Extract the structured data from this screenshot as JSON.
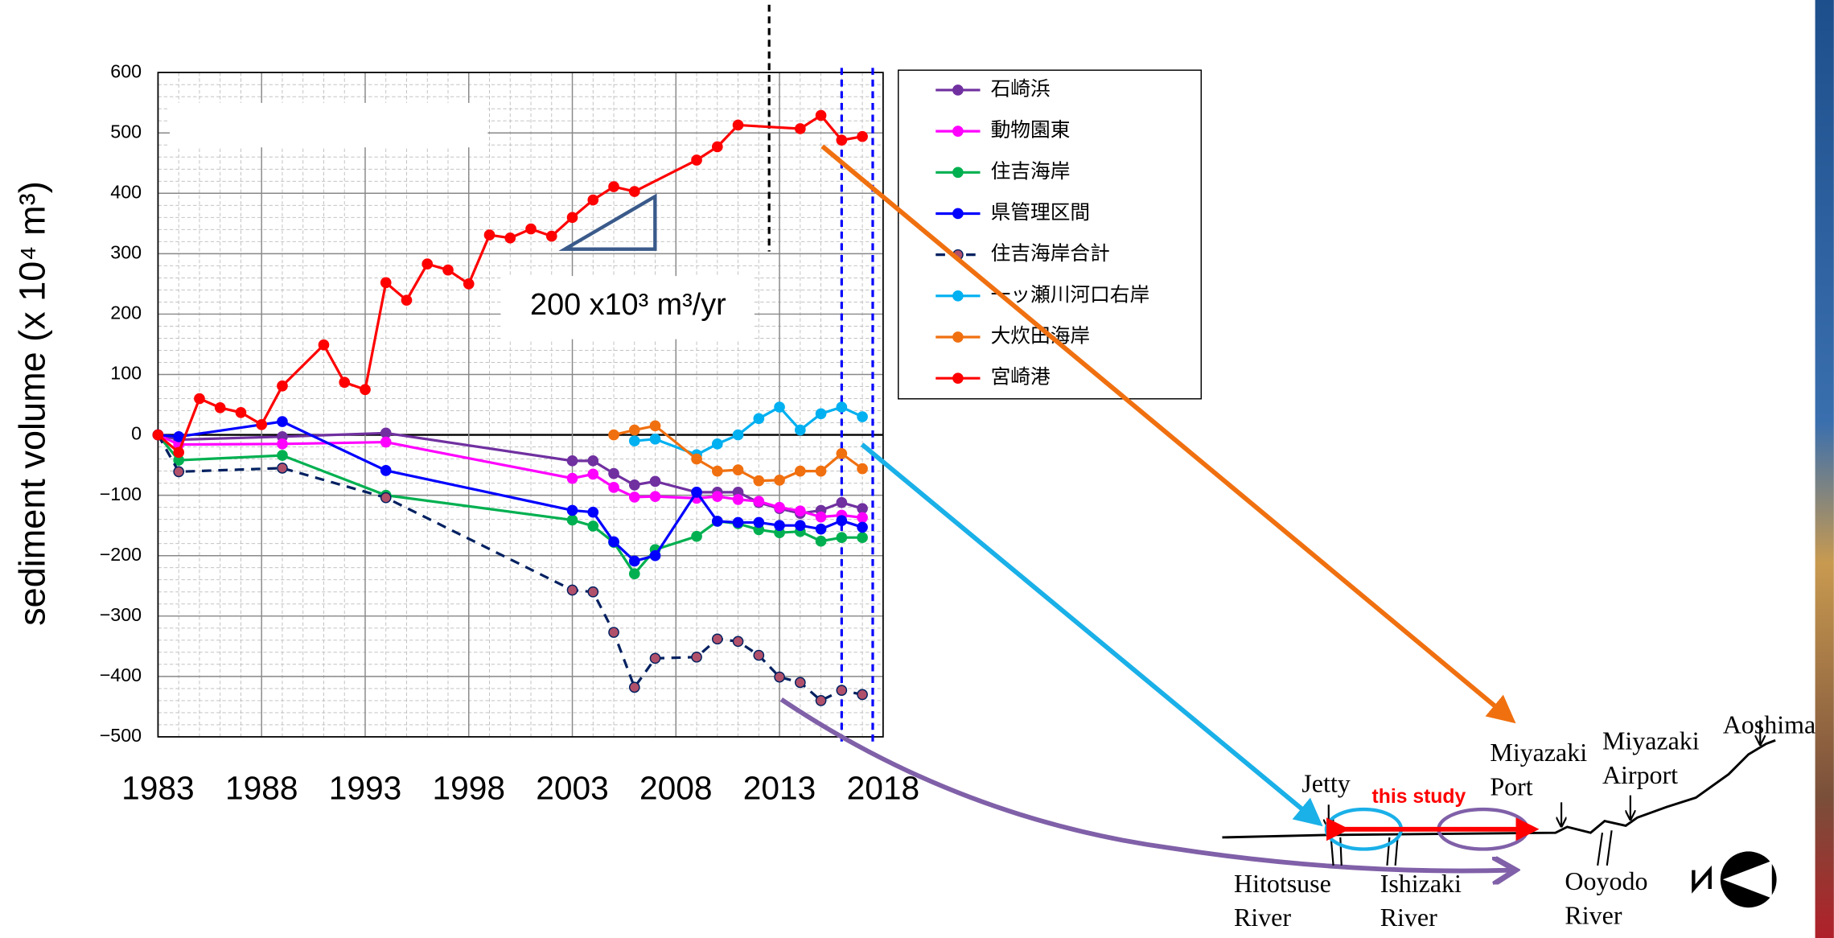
{
  "chart_data": {
    "type": "line",
    "y_label": "sediment volume (x 10⁴ m³)",
    "annotation": "200 x10³ m³/yr",
    "xlim": [
      1983,
      2018
    ],
    "xticks": [
      1983,
      1988,
      1993,
      1998,
      2003,
      2008,
      2013,
      2018
    ],
    "ylim": [
      -500,
      600
    ],
    "yticks": [
      {
        "value": -500,
        "label": "−500"
      },
      {
        "value": -400,
        "label": "−400"
      },
      {
        "value": -300,
        "label": "−300"
      },
      {
        "value": -200,
        "label": "−200"
      },
      {
        "value": -100,
        "label": "−100"
      },
      0,
      100,
      200,
      300,
      400,
      500,
      600
    ],
    "grid": true,
    "reference_lines": [
      {
        "x": 2012.5,
        "color": "#000000"
      },
      {
        "x": 2016,
        "color": "#0000ff"
      },
      {
        "x": 2017.5,
        "color": "#0000ff"
      }
    ],
    "series": [
      {
        "name": "石崎浜",
        "color": "#7030a0",
        "x": [
          1983,
          1984,
          1989,
          1994,
          2003,
          2004,
          2005,
          2006,
          2007,
          2009,
          2010,
          2011,
          2012,
          2013,
          2014,
          2015,
          2016,
          2017
        ],
        "values": [
          0,
          -8,
          -3,
          3,
          -43,
          -43,
          -64,
          -83,
          -77,
          -95,
          -95,
          -95,
          -112,
          -122,
          -130,
          -125,
          -112,
          -122
        ]
      },
      {
        "name": "動物園東",
        "color": "#ff00ff",
        "x": [
          1983,
          1984,
          1989,
          1994,
          2003,
          2004,
          2005,
          2006,
          2007,
          2009,
          2010,
          2011,
          2012,
          2013,
          2014,
          2015,
          2016,
          2017
        ],
        "values": [
          0,
          -16,
          -15,
          -12,
          -72,
          -65,
          -87,
          -103,
          -102,
          -105,
          -102,
          -107,
          -110,
          -120,
          -126,
          -136,
          -133,
          -137
        ]
      },
      {
        "name": "住吉海岸",
        "color": "#00b050",
        "x": [
          1983,
          1984,
          1989,
          1994,
          2003,
          2004,
          2005,
          2006,
          2007,
          2009,
          2010,
          2011,
          2012,
          2013,
          2014,
          2015,
          2016,
          2017
        ],
        "values": [
          0,
          -42,
          -34,
          -100,
          -141,
          -151,
          -178,
          -230,
          -190,
          -168,
          -143,
          -147,
          -157,
          -162,
          -160,
          -176,
          -170,
          -170
        ]
      },
      {
        "name": "県管理区間",
        "color": "#0000ff",
        "x": [
          1983,
          1984,
          1989,
          1994,
          2003,
          2004,
          2005,
          2006,
          2007,
          2009,
          2010,
          2011,
          2012,
          2013,
          2014,
          2015,
          2016,
          2017
        ],
        "values": [
          0,
          -3,
          22,
          -59,
          -125,
          -128,
          -177,
          -209,
          -200,
          -95,
          -143,
          -145,
          -145,
          -150,
          -150,
          -156,
          -142,
          -153
        ]
      },
      {
        "name": "住吉海岸合計",
        "color": "#002060",
        "dashed": true,
        "marker_color": "#b0506a",
        "x": [
          1983,
          1984,
          1989,
          1994,
          2003,
          2004,
          2005,
          2006,
          2007,
          2009,
          2010,
          2011,
          2012,
          2013,
          2014,
          2015,
          2016,
          2017
        ],
        "values": [
          0,
          -61,
          -55,
          -104,
          -257,
          -260,
          -327,
          -418,
          -370,
          -368,
          -338,
          -342,
          -365,
          -401,
          -410,
          -440,
          -423,
          -430
        ]
      },
      {
        "name": "一ッ瀬川河口右岸",
        "color": "#00b0f0",
        "x": [
          2006,
          2007,
          2009,
          2010,
          2011,
          2012,
          2013,
          2014,
          2015,
          2016,
          2017
        ],
        "values": [
          -10,
          -7,
          -33,
          -15,
          0,
          27,
          46,
          8,
          35,
          46,
          30
        ]
      },
      {
        "name": "大炊田海岸",
        "color": "#f07010",
        "x": [
          2005,
          2006,
          2007,
          2009,
          2010,
          2011,
          2012,
          2013,
          2014,
          2015,
          2016,
          2017
        ],
        "values": [
          0,
          8,
          15,
          -40,
          -60,
          -58,
          -76,
          -75,
          -60,
          -60,
          -31,
          -56
        ]
      },
      {
        "name": "宮崎港",
        "color": "#ff0000",
        "x": [
          1983,
          1984,
          1985,
          1986,
          1987,
          1988,
          1989,
          1991,
          1992,
          1993,
          1994,
          1995,
          1996,
          1997,
          1998,
          1999,
          2000,
          2001,
          2002,
          2003,
          2004,
          2005,
          2006,
          2009,
          2010,
          2011,
          2014,
          2015,
          2016,
          2017
        ],
        "values": [
          0,
          -29,
          60,
          45,
          37,
          17,
          81,
          149,
          87,
          75,
          252,
          223,
          283,
          273,
          250,
          331,
          326,
          341,
          329,
          360,
          389,
          411,
          403,
          455,
          477,
          513,
          507,
          529,
          488,
          494
        ]
      }
    ]
  },
  "map": {
    "labels": [
      "Jetty",
      "this study",
      "Miyazaki Port",
      "Miyazaki Airport",
      "Aoshima",
      "Hitotsuse River",
      "Ishizaki River",
      "Ooyodo River"
    ]
  }
}
